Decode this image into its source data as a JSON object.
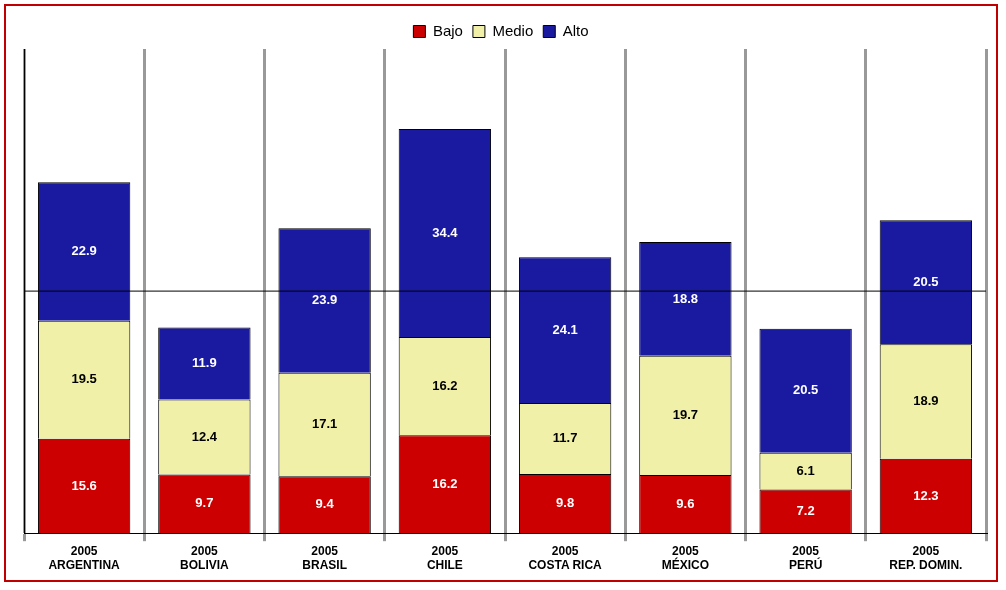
{
  "chart_data": {
    "type": "bar",
    "stacked": true,
    "categories": [
      "2005\nARGENTINA",
      "2005\nBOLIVIA",
      "2005\nBRASIL",
      "2005\nCHILE",
      "2005\nCOSTA RICA",
      "2005\nMÉXICO",
      "2005\nPERÚ",
      "2005\nREP. DOMIN."
    ],
    "series": [
      {
        "name": "Bajo",
        "color": "#cc0000",
        "values": [
          15.6,
          9.7,
          9.4,
          16.2,
          9.8,
          9.6,
          7.2,
          12.3
        ]
      },
      {
        "name": "Medio",
        "color": "#f0f0a8",
        "values": [
          19.5,
          12.4,
          17.1,
          16.2,
          11.7,
          19.7,
          6.1,
          18.9
        ]
      },
      {
        "name": "Alto",
        "color": "#1a1aa0",
        "values": [
          22.9,
          11.9,
          23.9,
          34.4,
          24.1,
          18.8,
          20.5,
          20.5
        ]
      }
    ],
    "ylim": [
      0,
      80
    ],
    "tick_labels": "x",
    "grid": "x",
    "legend": "top",
    "data_labels": true,
    "ref_lines": [
      {
        "axis": "y",
        "value": 40,
        "color": "#000000"
      }
    ]
  }
}
